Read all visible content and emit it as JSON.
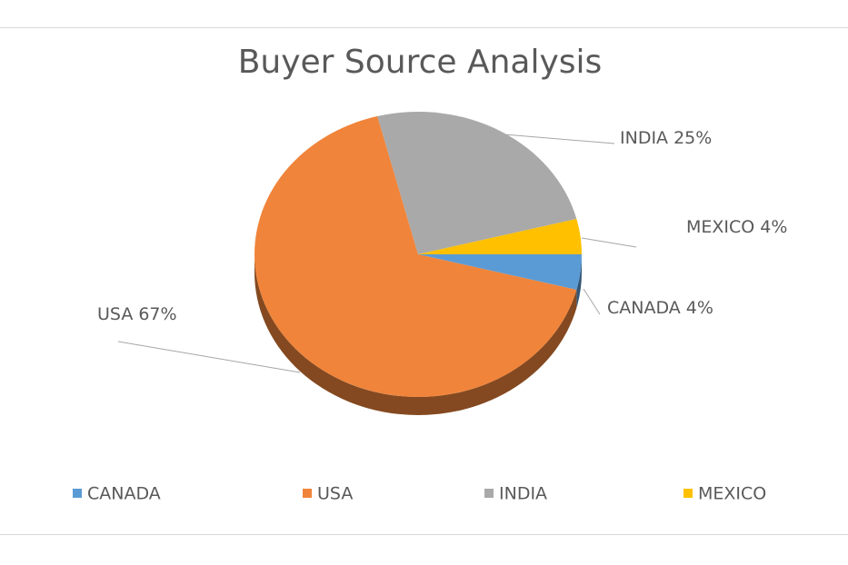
{
  "chart_data": {
    "type": "pie",
    "title": "Buyer Source Analysis",
    "categories": [
      "CANADA",
      "USA",
      "INDIA",
      "MEXICO"
    ],
    "values": [
      4,
      67,
      25,
      4
    ],
    "value_labels": [
      "4%",
      "67%",
      "25%",
      "4%"
    ],
    "colors": [
      "#5b9bd5",
      "#f0843a",
      "#a9a9a9",
      "#ffc000"
    ],
    "legend": "bottom"
  }
}
